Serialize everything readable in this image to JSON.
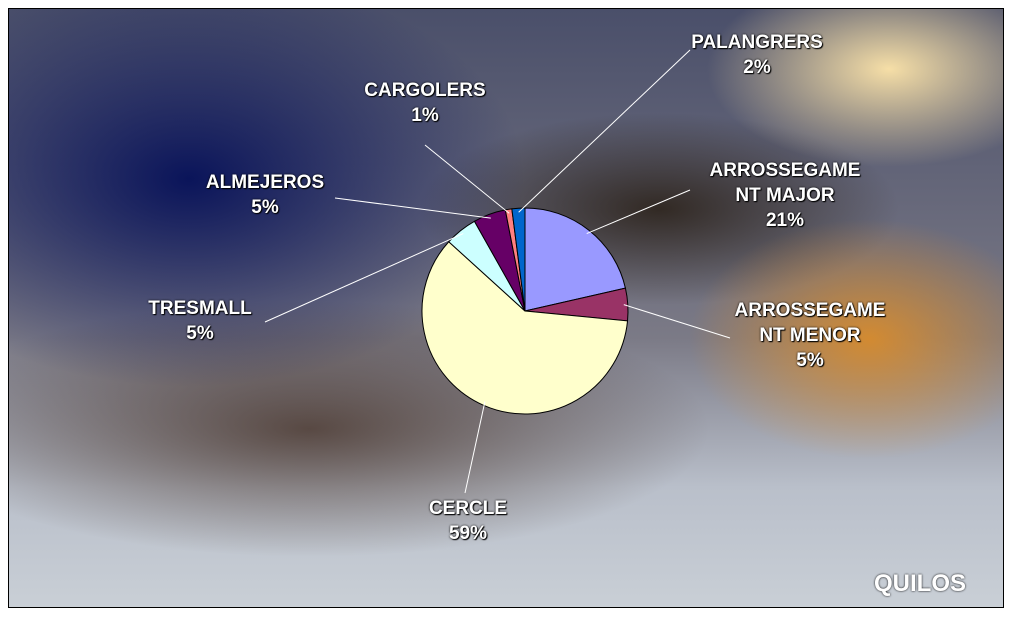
{
  "chart_data": {
    "type": "pie",
    "title": "QUILOS",
    "categories": [
      "ARROSSEGAMENT MAJOR",
      "ARROSSEGAMENT MENOR",
      "CERCLE",
      "TRESMALL",
      "ALMEJEROS",
      "CARGOLERS",
      "PALANGRERS"
    ],
    "values": [
      21,
      5,
      59,
      5,
      5,
      1,
      2
    ],
    "value_labels": [
      "21%",
      "5%",
      "59%",
      "5%",
      "5%",
      "1%",
      "2%"
    ],
    "colors": [
      "#9999ff",
      "#993366",
      "#ffffcc",
      "#ccffff",
      "#660066",
      "#ff8080",
      "#0066cc"
    ]
  }
}
